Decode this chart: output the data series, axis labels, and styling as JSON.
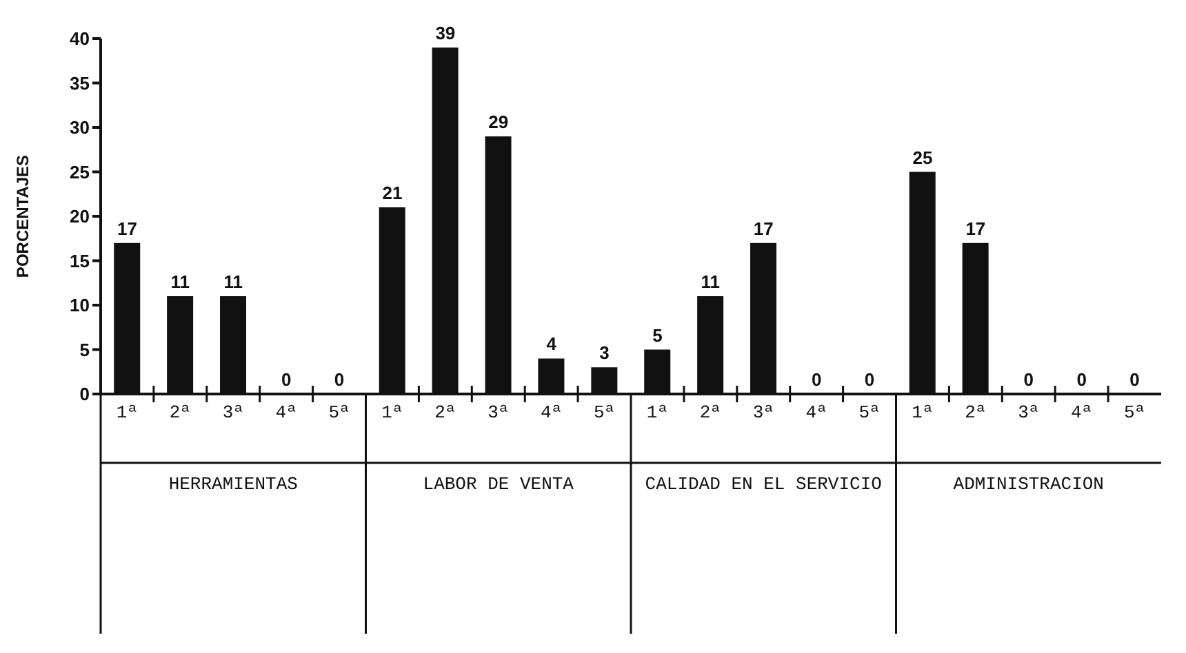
{
  "chart_data": {
    "type": "bar",
    "ylabel": "PORCENTAJES",
    "categories": [
      "1ª",
      "2ª",
      "3ª",
      "4ª",
      "5ª",
      "1ª",
      "2ª",
      "3ª",
      "4ª",
      "5ª",
      "1ª",
      "2ª",
      "3ª",
      "4ª",
      "5ª",
      "1ª",
      "2ª",
      "3ª",
      "4ª",
      "5ª"
    ],
    "values": [
      17,
      11,
      11,
      0,
      0,
      21,
      39,
      29,
      4,
      3,
      5,
      11,
      17,
      0,
      0,
      25,
      17,
      0,
      0,
      0
    ],
    "color": "#111111",
    "ylim": [
      0,
      40
    ],
    "yticks": [
      0,
      5,
      10,
      15,
      20,
      25,
      30,
      35,
      40
    ],
    "grid": false,
    "data_labels": true,
    "annotations": [
      "HERRAMIENTAS",
      "LABOR DE VENTA",
      "CALIDAD EN EL SERVICIO",
      "ADMINISTRACION"
    ]
  }
}
